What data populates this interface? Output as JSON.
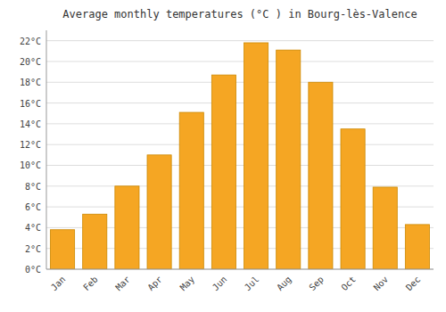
{
  "chart_data": {
    "type": "bar",
    "title": "Average monthly temperatures (°C ) in Bourg-lès-Valence",
    "categories": [
      "Jan",
      "Feb",
      "Mar",
      "Apr",
      "May",
      "Jun",
      "Jul",
      "Aug",
      "Sep",
      "Oct",
      "Nov",
      "Dec"
    ],
    "values": [
      3.8,
      5.3,
      8.0,
      11.0,
      15.1,
      18.7,
      21.8,
      21.1,
      18.0,
      13.5,
      7.9,
      4.3
    ],
    "color": "#F5A623",
    "ylim": [
      0,
      23
    ],
    "yticks": [
      {
        "value": 0,
        "label": "0°C"
      },
      {
        "value": 2,
        "label": "2°C"
      },
      {
        "value": 4,
        "label": "4°C"
      },
      {
        "value": 6,
        "label": "6°C"
      },
      {
        "value": 8,
        "label": "8°C"
      },
      {
        "value": 10,
        "label": "10°C"
      },
      {
        "value": 12,
        "label": "12°C"
      },
      {
        "value": 14,
        "label": "14°C"
      },
      {
        "value": 16,
        "label": "16°C"
      },
      {
        "value": 18,
        "label": "18°C"
      },
      {
        "value": 20,
        "label": "20°C"
      },
      {
        "value": 22,
        "label": "22°C"
      }
    ],
    "grid": true
  }
}
